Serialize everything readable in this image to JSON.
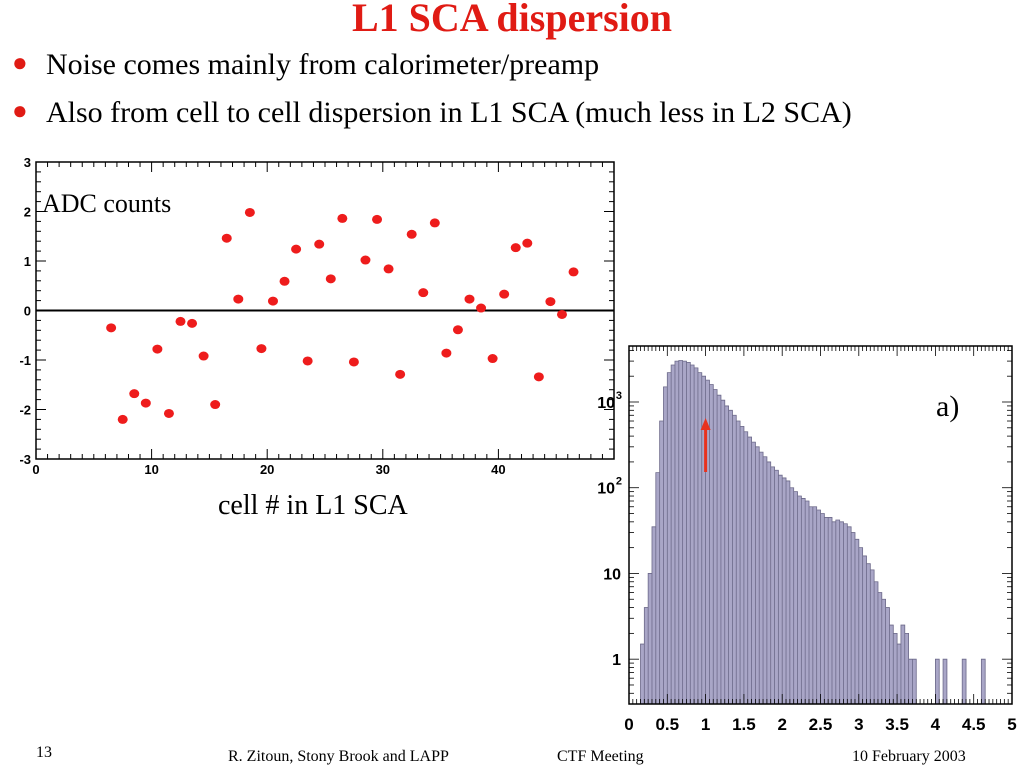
{
  "slide": {
    "title": "L1 SCA dispersion",
    "bullets": [
      "Noise comes mainly from calorimeter/preamp",
      "Also from cell to cell dispersion in L1 SCA (much less in L2 SCA)"
    ],
    "page_number": "13",
    "footer_author": "R. Zitoun, Stony Brook and LAPP",
    "footer_meeting": "CTF  Meeting",
    "footer_date": "10 February 2003",
    "accent_color": "#e01b14"
  },
  "chart_data": [
    {
      "type": "scatter",
      "title": "",
      "ylabel": "ADC counts",
      "xlabel": "cell # in L1 SCA",
      "xlim": [
        0,
        50
      ],
      "ylim": [
        -3,
        3
      ],
      "x_ticks": [
        "0",
        "10",
        "20",
        "30",
        "40"
      ],
      "y_ticks": [
        "-3",
        "-2",
        "-1",
        "0",
        "1",
        "2",
        "3"
      ],
      "point_color": "#ee1c1c",
      "reference_line_y": 0,
      "series": [
        {
          "x": [
            6.5,
            7.5,
            8.5,
            9.5,
            10.5,
            11.5,
            12.5,
            13.5,
            14.5,
            15.5,
            16.5,
            17.5,
            18.5,
            19.5,
            20.5,
            21.5,
            22.5,
            23.5,
            24.5,
            25.5,
            26.5,
            27.5,
            28.5,
            29.5,
            30.5,
            31.5,
            32.5,
            33.5,
            34.5,
            35.5,
            36.5,
            37.5,
            38.5,
            39.5,
            40.5,
            41.5,
            42.5,
            43.5,
            44.5,
            45.5,
            46.5
          ],
          "y": [
            -0.35,
            -2.2,
            -1.68,
            -1.87,
            -0.78,
            -2.08,
            -0.22,
            -0.26,
            -0.92,
            -1.9,
            1.46,
            0.23,
            1.98,
            -0.77,
            0.19,
            0.59,
            1.24,
            -1.02,
            1.34,
            0.64,
            1.86,
            -1.04,
            1.02,
            1.84,
            0.84,
            -1.29,
            1.54,
            0.36,
            1.77,
            -0.86,
            -0.39,
            0.23,
            0.05,
            -0.97,
            0.33,
            1.27,
            1.36,
            -1.34,
            0.18,
            -0.08,
            0.78
          ]
        }
      ]
    },
    {
      "type": "bar",
      "title": "",
      "annotation": "a)",
      "xlabel": "",
      "ylabel": "",
      "xlim": [
        0,
        5
      ],
      "y_scale": "log",
      "ylim": [
        0.3,
        4500
      ],
      "x_ticks": [
        "0",
        "0.5",
        "1",
        "1.5",
        "2",
        "2.5",
        "3",
        "3.5",
        "4",
        "4.5",
        "5"
      ],
      "y_ticks": [
        {
          "value": 1,
          "label": "1"
        },
        {
          "value": 10,
          "label": "10"
        },
        {
          "value": 100,
          "label": "10",
          "sup": "2"
        },
        {
          "value": 1000,
          "label": "10",
          "sup": "3"
        }
      ],
      "bar_color": "#a9a6c7",
      "arrow_color": "#e8321e",
      "arrow_x": 1.0,
      "bin_width": 0.05,
      "bin_start": 0.0,
      "values": [
        0,
        0,
        0,
        1.5,
        4,
        10,
        35,
        150,
        600,
        1500,
        2200,
        2700,
        3000,
        3050,
        3000,
        2900,
        2700,
        2500,
        2200,
        2000,
        1800,
        1600,
        1400,
        1200,
        1050,
        900,
        800,
        700,
        600,
        520,
        450,
        390,
        340,
        300,
        260,
        230,
        200,
        175,
        160,
        140,
        130,
        120,
        100,
        90,
        80,
        75,
        70,
        60,
        60,
        55,
        50,
        45,
        45,
        40,
        42,
        40,
        38,
        35,
        30,
        25,
        20,
        16,
        13,
        11,
        8,
        6,
        5,
        4,
        2.5,
        2,
        1.5,
        2.5,
        2,
        1,
        1,
        0,
        0,
        0,
        0,
        0,
        1,
        0,
        1,
        0,
        0,
        0,
        0,
        1,
        0,
        0,
        0,
        0,
        1,
        0,
        0,
        0,
        0,
        0,
        0,
        0
      ]
    }
  ]
}
